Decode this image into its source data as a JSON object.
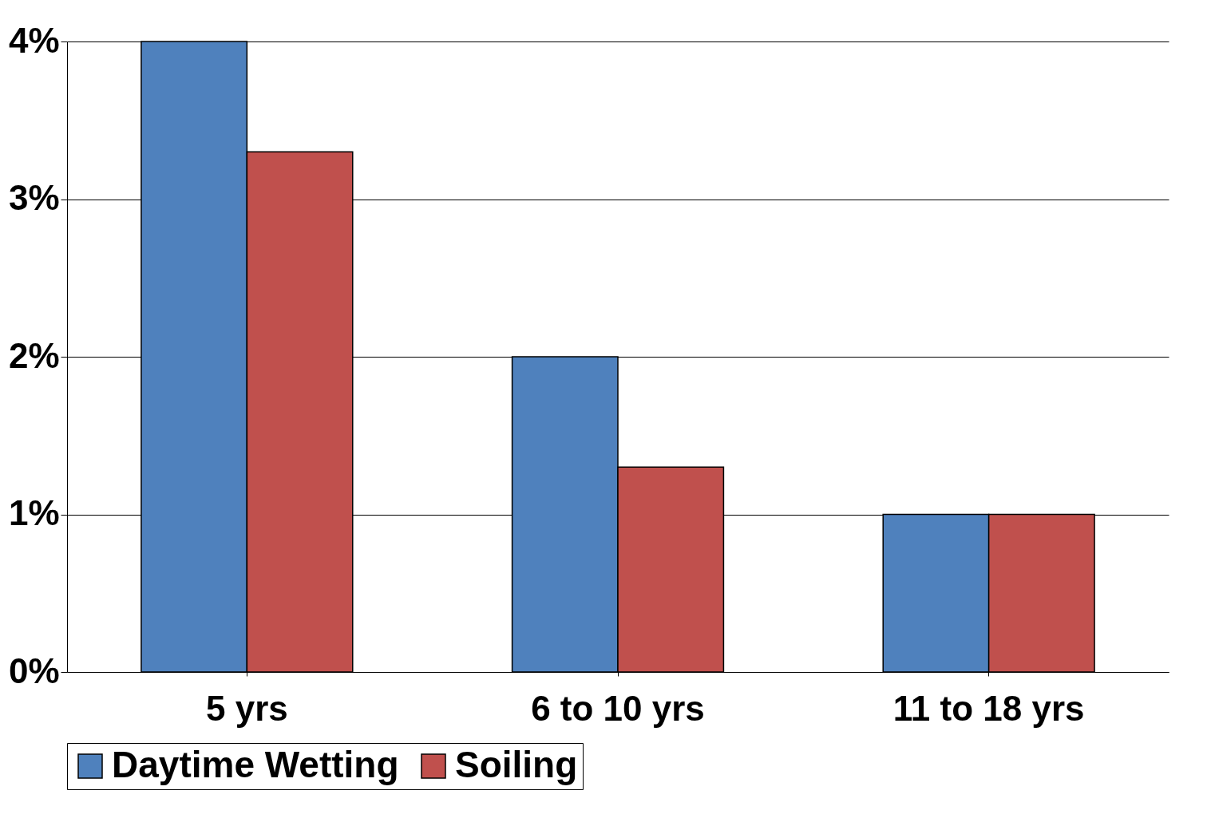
{
  "chart_data": {
    "type": "bar",
    "categories": [
      "5 yrs",
      "6  to 10 yrs",
      "11 to 18 yrs"
    ],
    "series": [
      {
        "name": "Daytime Wetting",
        "color": "#4f81bd",
        "values": [
          4,
          2,
          1
        ]
      },
      {
        "name": "Soiling",
        "color": "#c0504d",
        "values": [
          3.3,
          1.3,
          1
        ]
      }
    ],
    "ylim": [
      0,
      4
    ],
    "yticks": [
      {
        "value": 0,
        "label": "0%"
      },
      {
        "value": 1,
        "label": "1%"
      },
      {
        "value": 2,
        "label": "2%"
      },
      {
        "value": 3,
        "label": "3%"
      },
      {
        "value": 4,
        "label": "4%"
      }
    ],
    "grid": "y",
    "legend": "bottom"
  }
}
